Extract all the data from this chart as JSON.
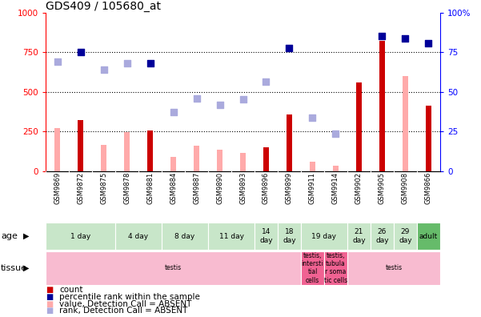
{
  "title": "GDS409 / 105680_at",
  "samples": [
    "GSM9869",
    "GSM9872",
    "GSM9875",
    "GSM9878",
    "GSM9881",
    "GSM9884",
    "GSM9887",
    "GSM9890",
    "GSM9893",
    "GSM9896",
    "GSM9899",
    "GSM9911",
    "GSM9914",
    "GSM9902",
    "GSM9905",
    "GSM9908",
    "GSM9866"
  ],
  "count_values": [
    null,
    320,
    null,
    null,
    255,
    null,
    null,
    null,
    null,
    150,
    360,
    null,
    null,
    560,
    820,
    null,
    415
  ],
  "count_absent": [
    270,
    null,
    165,
    245,
    null,
    90,
    160,
    135,
    115,
    null,
    null,
    60,
    35,
    null,
    null,
    600,
    null
  ],
  "percentile_present": [
    null,
    75,
    null,
    null,
    68,
    null,
    null,
    null,
    null,
    null,
    77.5,
    null,
    null,
    null,
    85.5,
    84,
    80.5
  ],
  "percentile_absent": [
    69,
    null,
    64,
    68,
    null,
    37.5,
    46,
    42,
    45.5,
    56.5,
    null,
    34,
    23.5,
    null,
    null,
    null,
    null
  ],
  "ylim_left": [
    0,
    1000
  ],
  "ylim_right": [
    0,
    100
  ],
  "yticks_left": [
    0,
    250,
    500,
    750,
    1000
  ],
  "yticks_right": [
    0,
    25,
    50,
    75,
    100
  ],
  "age_groups": [
    {
      "label": "1 day",
      "start": 0,
      "end": 3
    },
    {
      "label": "4 day",
      "start": 3,
      "end": 5
    },
    {
      "label": "8 day",
      "start": 5,
      "end": 7
    },
    {
      "label": "11 day",
      "start": 7,
      "end": 9
    },
    {
      "label": "14\nday",
      "start": 9,
      "end": 10
    },
    {
      "label": "18\nday",
      "start": 10,
      "end": 11
    },
    {
      "label": "19 day",
      "start": 11,
      "end": 13
    },
    {
      "label": "21\nday",
      "start": 13,
      "end": 14
    },
    {
      "label": "26\nday",
      "start": 14,
      "end": 15
    },
    {
      "label": "29\nday",
      "start": 15,
      "end": 16
    },
    {
      "label": "adult",
      "start": 16,
      "end": 17
    }
  ],
  "age_colors": [
    "#c8e6c9",
    "#c8e6c9",
    "#c8e6c9",
    "#c8e6c9",
    "#c8e6c9",
    "#c8e6c9",
    "#c8e6c9",
    "#c8e6c9",
    "#c8e6c9",
    "#c8e6c9",
    "#66bb6a"
  ],
  "tissue_groups": [
    {
      "label": "testis",
      "start": 0,
      "end": 11,
      "color": "#f8bbd0"
    },
    {
      "label": "testis,\nintersti\ntial\ncells",
      "start": 11,
      "end": 12,
      "color": "#f06292"
    },
    {
      "label": "testis,\ntubula\nr soma\ntic cells",
      "start": 12,
      "end": 13,
      "color": "#f06292"
    },
    {
      "label": "testis",
      "start": 13,
      "end": 17,
      "color": "#f8bbd0"
    }
  ],
  "bar_color_present": "#cc0000",
  "bar_color_absent": "#ffaaaa",
  "dot_color_present": "#000099",
  "dot_color_absent": "#aaaadd",
  "bar_width": 0.25,
  "dot_size": 40,
  "background_color": "#ffffff",
  "title_fontsize": 10,
  "tick_fontsize": 7.5,
  "sample_fontsize": 6,
  "label_fontsize": 8,
  "legend_fontsize": 7.5
}
